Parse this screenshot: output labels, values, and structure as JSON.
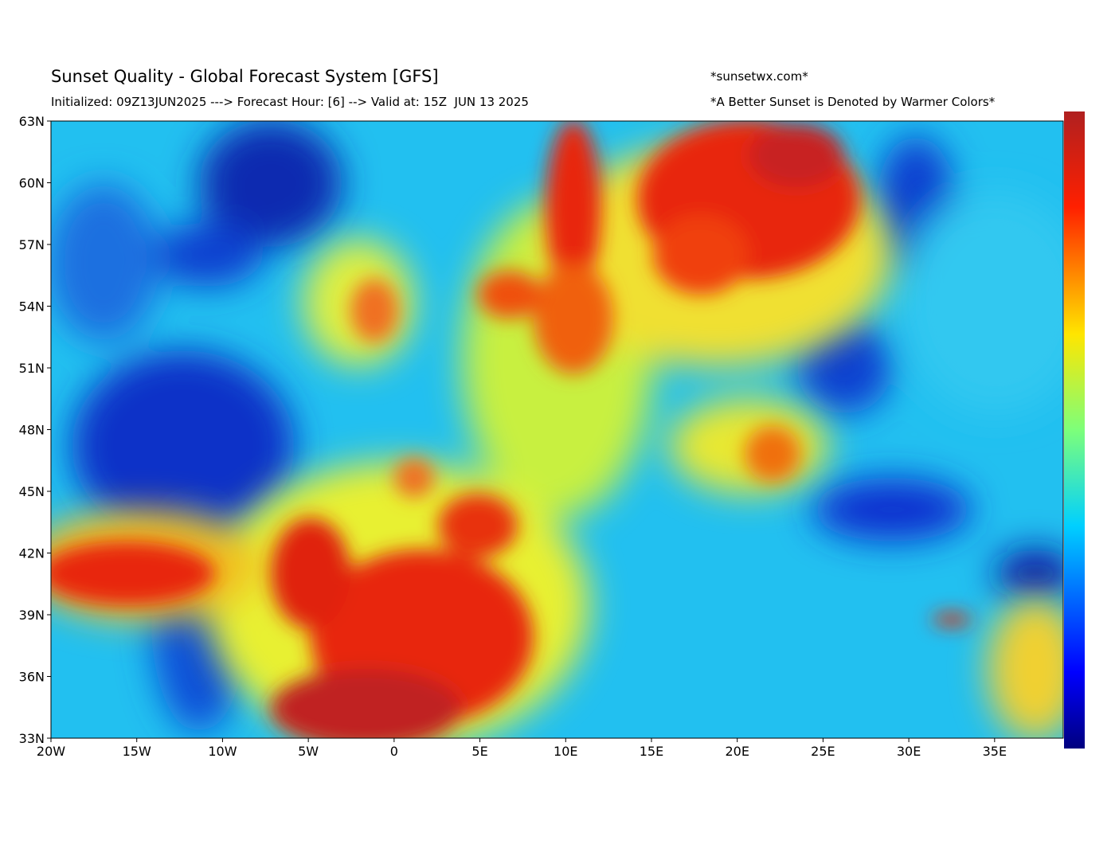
{
  "header": {
    "title": "Sunset Quality - Global Forecast System [GFS]",
    "site": "*sunsetwx.com*",
    "subtitle": "Initialized: 09Z13JUN2025 ---> Forecast Hour: [6] --> Valid at: 15Z  JUN 13 2025",
    "note": "*A Better Sunset is Denoted by Warmer Colors*"
  },
  "map": {
    "lat_labels": [
      "63N",
      "60N",
      "57N",
      "54N",
      "51N",
      "48N",
      "45N",
      "42N",
      "39N",
      "36N",
      "33N"
    ],
    "lon_labels": [
      "20W",
      "15W",
      "10W",
      "5W",
      "0",
      "5E",
      "10E",
      "15E",
      "20E",
      "25E",
      "30E",
      "35E"
    ]
  }
}
